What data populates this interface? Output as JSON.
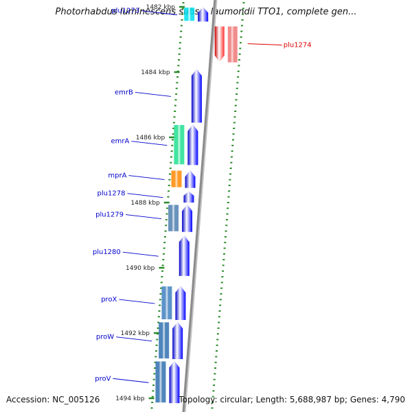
{
  "title": "Photorhabdus luminescens subsp. laumondii TTO1, complete gen...",
  "footer": {
    "accession": "Accession: NC_005126",
    "info": "Topology: circular; Length: 5,688,987 bp; Genes: 4,790"
  },
  "colors": {
    "forward_gene": "#0000ee",
    "reverse_gene": "#ee0000",
    "label_forward": "#0000cc",
    "label_reverse": "#dd0000",
    "tick": "#2a8a2a",
    "backbone": "#8c8c8c"
  },
  "scale_labels": [
    {
      "text": "1482 kbp",
      "pos": 1482
    },
    {
      "text": "1484 kbp",
      "pos": 1484
    },
    {
      "text": "1486 kbp",
      "pos": 1486
    },
    {
      "text": "1488 kbp",
      "pos": 1488
    },
    {
      "text": "1490 kbp",
      "pos": 1490
    },
    {
      "text": "1492 kbp",
      "pos": 1492
    },
    {
      "text": "1494 kbp",
      "pos": 1494
    }
  ],
  "genes": [
    {
      "name": "plu1273",
      "strand": "+",
      "start": 1482.0,
      "end": 1482.45,
      "feature_color": "#00e0f0"
    },
    {
      "name": "plu1274",
      "strand": "-",
      "start": 1482.6,
      "end": 1483.7,
      "feature_color": "#ff2020"
    },
    {
      "name": "emrB",
      "strand": "+",
      "start": 1483.9,
      "end": 1485.55
    },
    {
      "name": "emrA",
      "strand": "+",
      "start": 1485.6,
      "end": 1486.85,
      "feature_color": "#20e090"
    },
    {
      "name": "mprA",
      "strand": "+",
      "start": 1487.0,
      "end": 1487.55,
      "feature_color": "#ff8800"
    },
    {
      "name": "plu1278",
      "strand": "+",
      "start": 1487.65,
      "end": 1488.0
    },
    {
      "name": "plu1279",
      "strand": "+",
      "start": 1488.05,
      "end": 1488.9,
      "feature_color": "#5080b0"
    },
    {
      "name": "plu1280",
      "strand": "+",
      "start": 1489.0,
      "end": 1490.25
    },
    {
      "name": "proX",
      "strand": "+",
      "start": 1490.55,
      "end": 1491.6,
      "feature_color": "#4080c0"
    },
    {
      "name": "proW",
      "strand": "+",
      "start": 1491.65,
      "end": 1492.8,
      "feature_color": "#3070b0"
    },
    {
      "name": "proV",
      "strand": "+",
      "start": 1492.85,
      "end": 1494.15,
      "feature_color": "#3070b0"
    }
  ]
}
